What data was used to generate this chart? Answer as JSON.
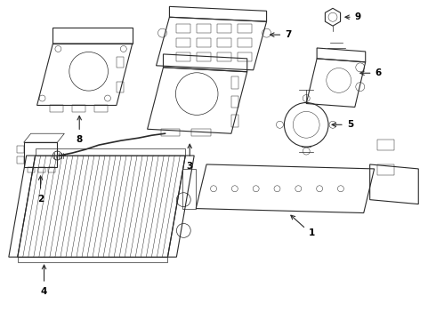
{
  "background_color": "#ffffff",
  "line_color": "#2a2a2a",
  "label_color": "#000000",
  "figsize": [
    4.9,
    3.6
  ],
  "dpi": 100,
  "label_fontsize": 7.5,
  "label_fontweight": "bold"
}
